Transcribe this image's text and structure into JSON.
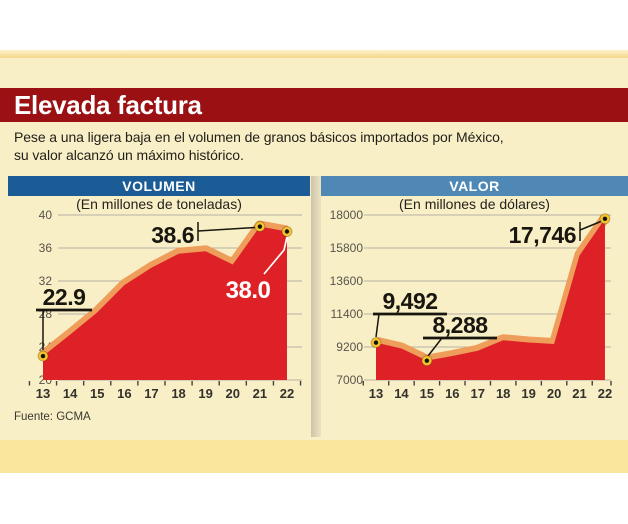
{
  "page": {
    "title": "Elevada factura",
    "intro_line1": "Pese a una ligera baja en el volumen de granos básicos importados por México,",
    "intro_line2": "su valor alcanzó un máximo histórico.",
    "source": "Fuente: GCMA"
  },
  "colors": {
    "header_red": "#9a1013",
    "background_cream": "#f9efc7",
    "accent_yellow_band": "#fbe79c",
    "panel_blue_left": "#1b5b96",
    "panel_blue_right": "#4f88b5",
    "area_red": "#dd2127",
    "ribbon_orange": "#ef9d5b",
    "marker_gold": "#f4c22e",
    "marker_center": "#15130e",
    "gridline_gray": "#b7b2a4",
    "annotation_black": "#18160f",
    "annotation_white": "#ffffff"
  },
  "chart_data": [
    {
      "id": "volumen",
      "type": "area",
      "title": "VOLUMEN",
      "subtitle": "(En millones de toneladas)",
      "categories": [
        "13",
        "14",
        "15",
        "16",
        "17",
        "18",
        "19",
        "20",
        "21",
        "22"
      ],
      "values": [
        22.9,
        25.5,
        28.2,
        31.5,
        33.6,
        35.3,
        35.6,
        34.0,
        38.6,
        38.0
      ],
      "ylim": [
        20,
        40
      ],
      "yticks": [
        40,
        36,
        32,
        28,
        24,
        20
      ],
      "grid": true,
      "legend": "none",
      "annotations": [
        {
          "index": 0,
          "label": "22.9"
        },
        {
          "index": 8,
          "label": "38.6"
        },
        {
          "index": 9,
          "label": "38.0"
        }
      ]
    },
    {
      "id": "valor",
      "type": "area",
      "title": "VALOR",
      "subtitle": "(En millones de dólares)",
      "categories": [
        "13",
        "14",
        "15",
        "16",
        "17",
        "18",
        "19",
        "20",
        "21",
        "22"
      ],
      "values": [
        9492,
        9100,
        8288,
        8600,
        8950,
        9650,
        9500,
        9400,
        15300,
        17746
      ],
      "ylim": [
        7000,
        18000
      ],
      "yticks": [
        18000,
        15800,
        13600,
        11400,
        9200,
        7000
      ],
      "grid": true,
      "legend": "none",
      "annotations": [
        {
          "index": 0,
          "label": "9,492"
        },
        {
          "index": 2,
          "label": "8,288"
        },
        {
          "index": 9,
          "label": "17,746"
        }
      ]
    }
  ]
}
